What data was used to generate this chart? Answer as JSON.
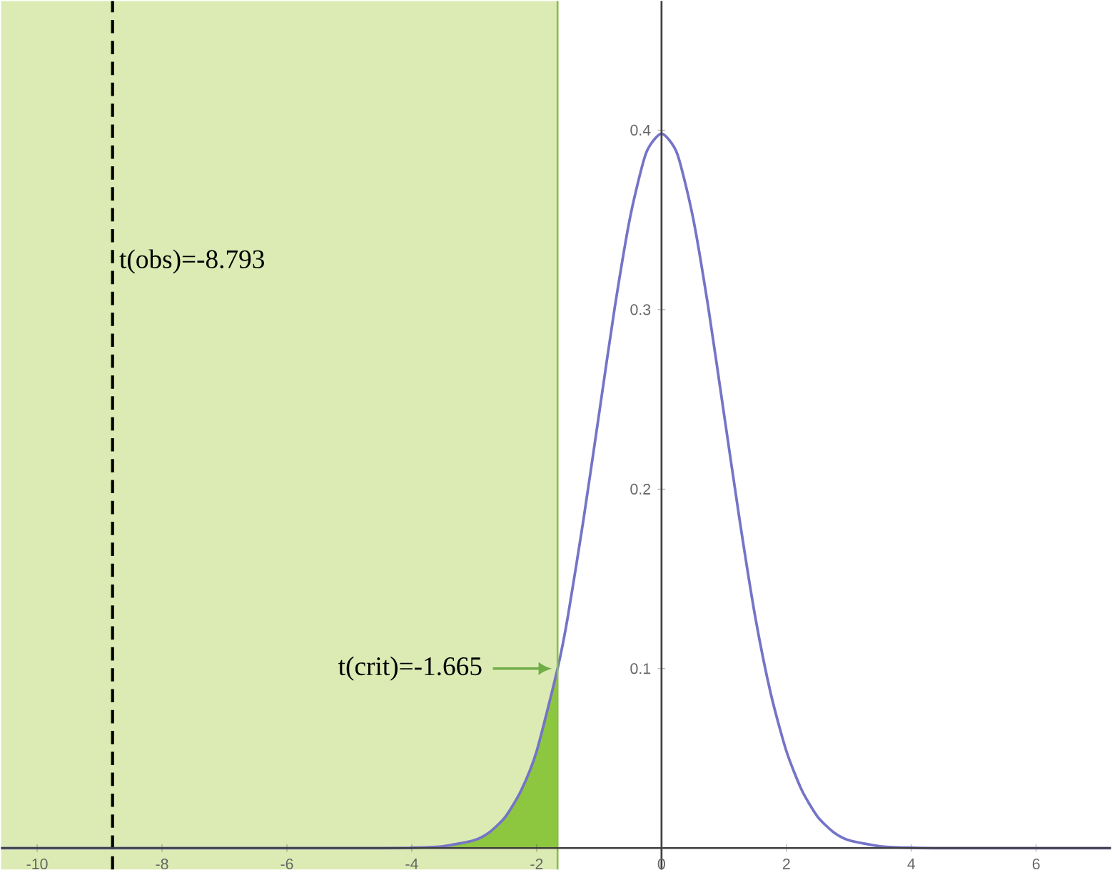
{
  "chart_data": {
    "type": "line",
    "xlim": [
      -10.58,
      7.2
    ],
    "ylim": [
      -0.012,
      0.472
    ],
    "xticks": [
      -10,
      -8,
      -6,
      -4,
      -2,
      0,
      2,
      4,
      6
    ],
    "yticks": [
      0.1,
      0.2,
      0.3,
      0.4
    ],
    "grid": false,
    "series": [
      {
        "type": "area",
        "color": "#8dc63f",
        "x": [
          -10.58,
          -4.5,
          -4,
          -3.5,
          -3,
          -2.75,
          -2.5,
          -2.25,
          -2,
          -1.665
        ],
        "values": [
          0,
          0,
          0.0002,
          0.001,
          0.0044,
          0.009,
          0.0175,
          0.032,
          0.054,
          0.1
        ]
      },
      {
        "color": "#7474c8",
        "x": [
          -10.58,
          -4.5,
          -4,
          -3.5,
          -3,
          -2.75,
          -2.5,
          -2.25,
          -2,
          -1.665,
          -1.5,
          -1.25,
          -1,
          -0.75,
          -0.5,
          -0.25,
          0,
          0.25,
          0.5,
          0.75,
          1,
          1.25,
          1.5,
          1.75,
          2,
          2.25,
          2.5,
          2.75,
          3,
          3.5,
          4,
          4.5,
          7.2
        ],
        "values": [
          0,
          0,
          0.0002,
          0.001,
          0.0044,
          0.009,
          0.0175,
          0.032,
          0.054,
          0.1,
          0.129,
          0.183,
          0.242,
          0.301,
          0.352,
          0.387,
          0.398,
          0.387,
          0.352,
          0.301,
          0.242,
          0.183,
          0.129,
          0.086,
          0.054,
          0.032,
          0.0175,
          0.009,
          0.0044,
          0.001,
          0.0002,
          0,
          0
        ]
      }
    ],
    "bands": [
      {
        "axis": "x",
        "from": -10.58,
        "to": -1.665,
        "color": "#dcebb4"
      }
    ],
    "ref_lines": [
      {
        "axis": "x",
        "value": -8.793,
        "label": "t(obs)=-8.793",
        "color": "#000000",
        "line_style": "dashed"
      },
      {
        "axis": "x",
        "value": -1.665,
        "color": "#8cbc50",
        "line_style": "solid"
      }
    ],
    "annotations": [
      {
        "text": "t(crit)=-1.665",
        "x": -1.665,
        "y": 0.1
      }
    ]
  }
}
